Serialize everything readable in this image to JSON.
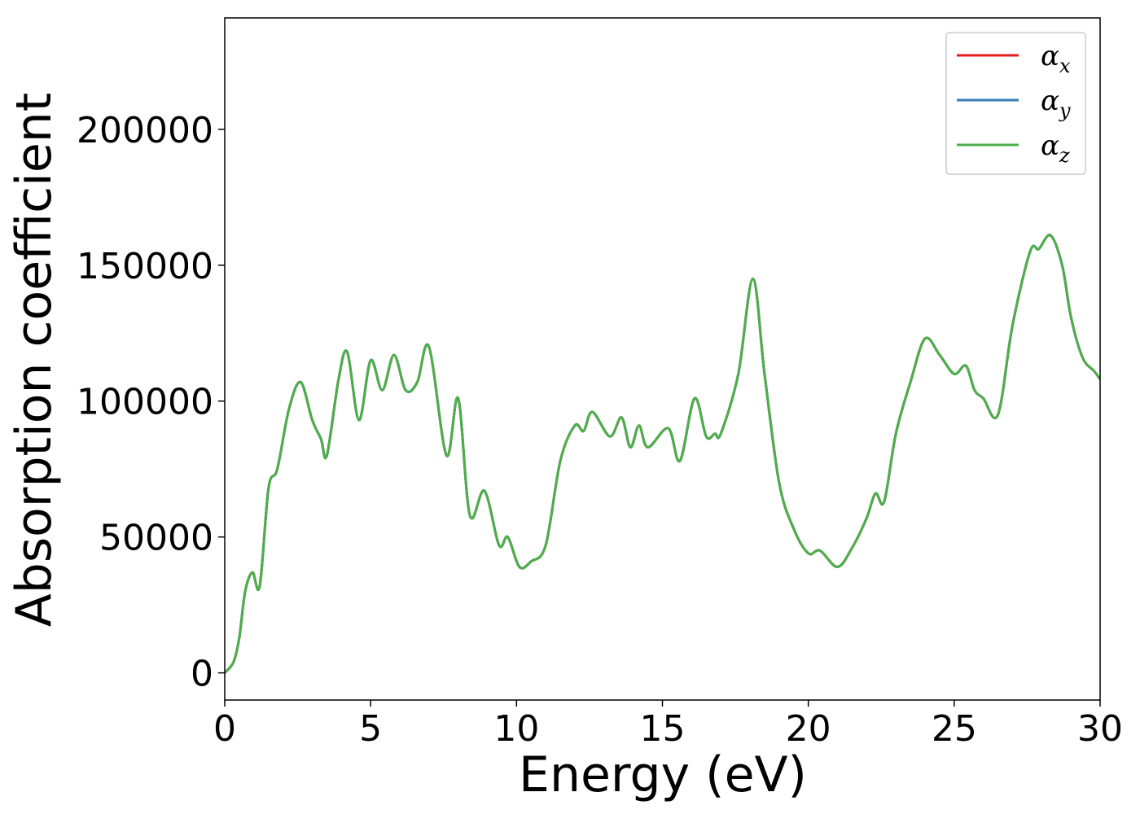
{
  "chart_data": {
    "type": "line",
    "xlabel": "Energy (eV)",
    "ylabel": "Absorption coefficient",
    "xlim": [
      0,
      30
    ],
    "ylim": [
      -10000,
      241000
    ],
    "xticks": [
      0,
      5,
      10,
      15,
      20,
      25,
      30
    ],
    "yticks": [
      0,
      50000,
      100000,
      150000,
      200000
    ],
    "grid": false,
    "legend_position": "top-right",
    "x": [
      0,
      0.3,
      0.5,
      0.7,
      0.95,
      1.2,
      1.5,
      1.8,
      2.2,
      2.6,
      3.0,
      3.3,
      3.5,
      3.9,
      4.2,
      4.6,
      5.0,
      5.4,
      5.8,
      6.2,
      6.6,
      7.0,
      7.6,
      8.0,
      8.4,
      8.9,
      9.4,
      9.7,
      10.1,
      10.5,
      11.0,
      11.5,
      12.0,
      12.3,
      12.6,
      13.2,
      13.6,
      13.9,
      14.2,
      14.5,
      15.2,
      15.6,
      16.1,
      16.5,
      16.8,
      17.0,
      17.6,
      18.1,
      18.5,
      19.0,
      19.5,
      20.0,
      20.4,
      21.0,
      21.5,
      22.0,
      22.3,
      22.6,
      23.0,
      23.5,
      24.0,
      24.5,
      25.0,
      25.4,
      25.7,
      26.0,
      26.5,
      27.0,
      27.6,
      27.9,
      28.3,
      28.7,
      29.0,
      29.4,
      29.8,
      30.0
    ],
    "series": [
      {
        "name": "α",
        "subscript": "x",
        "color": "#e41a1c",
        "values": [
          0,
          4000,
          13000,
          30000,
          37000,
          32000,
          68000,
          75000,
          97000,
          107000,
          93000,
          86000,
          80000,
          108000,
          118000,
          93000,
          115000,
          104000,
          117000,
          104000,
          107000,
          120000,
          80000,
          101000,
          58000,
          67000,
          47000,
          50000,
          39000,
          41000,
          47000,
          78000,
          91000,
          89000,
          96000,
          87000,
          94000,
          83000,
          91000,
          83000,
          90000,
          78000,
          101000,
          87000,
          88000,
          88000,
          110000,
          145000,
          110000,
          70000,
          53000,
          44000,
          45000,
          39000,
          46000,
          57000,
          66000,
          63000,
          88000,
          107000,
          123000,
          117000,
          110000,
          113000,
          104000,
          101000,
          95000,
          128000,
          155000,
          156000,
          161000,
          150000,
          131000,
          116000,
          111000,
          108000
        ]
      },
      {
        "name": "α",
        "subscript": "y",
        "color": "#377eb8",
        "values": [
          0,
          4000,
          13000,
          30000,
          37000,
          32000,
          68000,
          75000,
          97000,
          107000,
          93000,
          86000,
          80000,
          108000,
          118000,
          93000,
          115000,
          104000,
          117000,
          104000,
          107000,
          120000,
          80000,
          101000,
          58000,
          67000,
          47000,
          50000,
          39000,
          41000,
          47000,
          78000,
          91000,
          89000,
          96000,
          87000,
          94000,
          83000,
          91000,
          83000,
          90000,
          78000,
          101000,
          87000,
          88000,
          88000,
          110000,
          145000,
          110000,
          70000,
          53000,
          44000,
          45000,
          39000,
          46000,
          57000,
          66000,
          63000,
          88000,
          107000,
          123000,
          117000,
          110000,
          113000,
          104000,
          101000,
          95000,
          128000,
          155000,
          156000,
          161000,
          150000,
          131000,
          116000,
          111000,
          108000
        ]
      },
      {
        "name": "α",
        "subscript": "z",
        "color": "#4daf4a",
        "values": [
          0,
          4000,
          13000,
          30000,
          37000,
          32000,
          68000,
          75000,
          97000,
          107000,
          93000,
          86000,
          80000,
          108000,
          118000,
          93000,
          115000,
          104000,
          117000,
          104000,
          107000,
          120000,
          80000,
          101000,
          58000,
          67000,
          47000,
          50000,
          39000,
          41000,
          47000,
          78000,
          91000,
          89000,
          96000,
          87000,
          94000,
          83000,
          91000,
          83000,
          90000,
          78000,
          101000,
          87000,
          88000,
          88000,
          110000,
          145000,
          110000,
          70000,
          53000,
          44000,
          45000,
          39000,
          46000,
          57000,
          66000,
          63000,
          88000,
          107000,
          123000,
          117000,
          110000,
          113000,
          104000,
          101000,
          95000,
          128000,
          155000,
          156000,
          161000,
          150000,
          131000,
          116000,
          111000,
          108000
        ]
      }
    ]
  }
}
